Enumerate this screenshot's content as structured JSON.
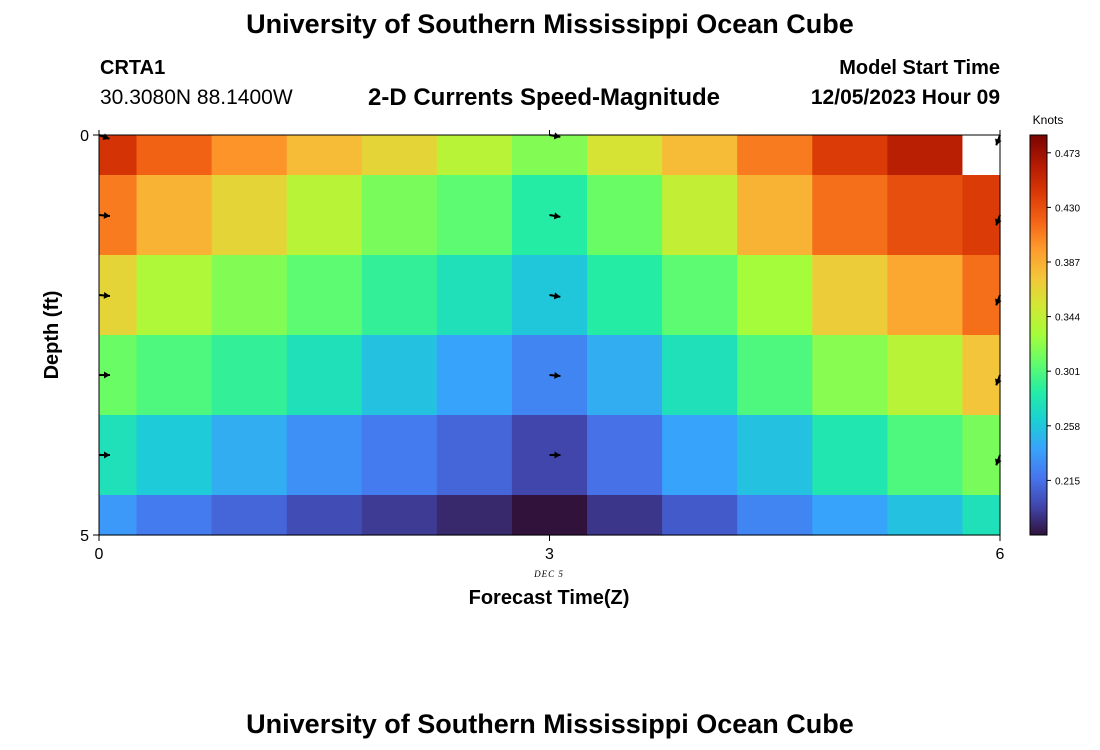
{
  "header": {
    "title": "University of Southern Mississippi Ocean Cube",
    "station": "CRTA1",
    "coords": "30.3080N  88.1400W",
    "subtitle": "2-D Currents Speed-Magnitude",
    "model_start_label": "Model Start Time",
    "model_start_value": "12/05/2023 Hour 09"
  },
  "footer": {
    "title": "University of Southern Mississippi Ocean Cube"
  },
  "chart_data": {
    "type": "heatmap",
    "xlabel": "Forecast Time(Z)",
    "ylabel": "Depth (ft)",
    "x_range": [
      0,
      6
    ],
    "y_range": [
      0,
      5
    ],
    "x_ticks": [
      "0",
      "3",
      "6"
    ],
    "y_ticks": [
      "0",
      "5"
    ],
    "date_label": "DEC 5",
    "colorbar": {
      "label": "Knots",
      "min": 0.172,
      "max": 0.487,
      "ticks": [
        "0.473",
        "0.430",
        "0.387",
        "0.344",
        "0.301",
        "0.258",
        "0.215"
      ]
    },
    "x_centers": [
      0,
      0.5,
      1,
      1.5,
      2,
      2.5,
      3,
      3.5,
      4,
      4.5,
      5,
      5.5,
      6
    ],
    "y_centers": [
      0,
      1,
      2,
      3,
      4,
      5
    ],
    "values": [
      [
        0.445,
        0.42,
        0.4,
        0.38,
        0.365,
        0.34,
        0.318,
        0.355,
        0.38,
        0.41,
        0.44,
        0.46,
        null
      ],
      [
        0.41,
        0.385,
        0.365,
        0.34,
        0.315,
        0.305,
        0.285,
        0.31,
        0.345,
        0.385,
        0.415,
        0.43,
        0.44
      ],
      [
        0.365,
        0.335,
        0.318,
        0.305,
        0.29,
        0.275,
        0.258,
        0.285,
        0.305,
        0.33,
        0.37,
        0.39,
        0.415
      ],
      [
        0.31,
        0.3,
        0.29,
        0.275,
        0.255,
        0.24,
        0.225,
        0.245,
        0.275,
        0.3,
        0.32,
        0.34,
        0.375
      ],
      [
        0.275,
        0.26,
        0.245,
        0.23,
        0.22,
        0.21,
        0.195,
        0.215,
        0.24,
        0.255,
        0.28,
        0.3,
        0.315
      ],
      [
        0.235,
        0.22,
        0.21,
        0.198,
        0.19,
        0.182,
        0.172,
        0.188,
        0.205,
        0.225,
        0.24,
        0.255,
        0.275
      ]
    ],
    "vectors": {
      "x": [
        0,
        3,
        6
      ],
      "y": [
        0,
        1,
        2,
        3,
        4
      ],
      "directions_deg": [
        [
          110,
          100,
          200
        ],
        [
          95,
          100,
          200
        ],
        [
          95,
          100,
          200
        ],
        [
          90,
          95,
          200
        ],
        [
          90,
          90,
          200
        ]
      ]
    },
    "palette": [
      "#30123b",
      "#4145ab",
      "#4675ed",
      "#39a2fc",
      "#1bcfd4",
      "#24eca6",
      "#61fc6c",
      "#a4fc3b",
      "#d1e834",
      "#f3c63a",
      "#fe9b2d",
      "#f36315",
      "#d93806",
      "#b11901",
      "#7a0402"
    ]
  }
}
